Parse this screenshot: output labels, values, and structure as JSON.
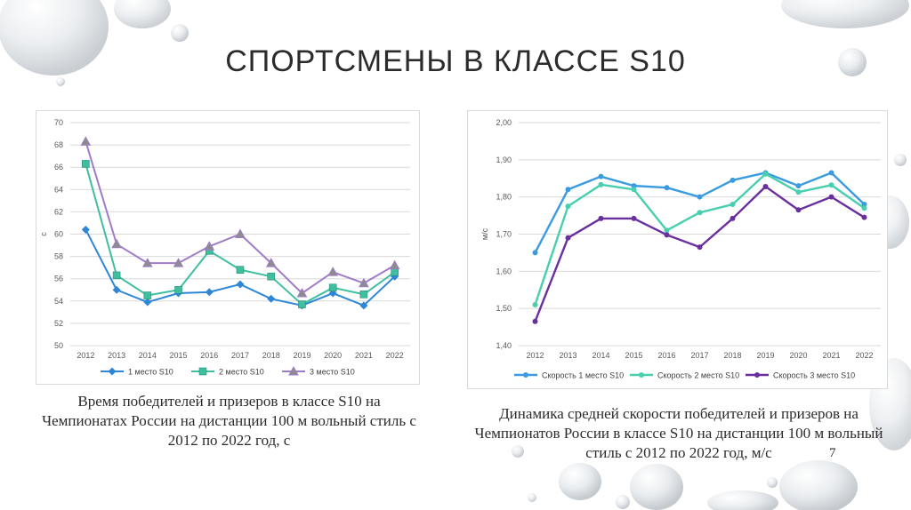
{
  "slide": {
    "title": "СПОРТСМЕНЫ В КЛАССЕ S10",
    "caption_left": "Время победителей и призеров в классе S10 на Чемпионатах России на дистанции 100 м вольный стиль с 2012 по 2022 год, с",
    "caption_right": "Динамика средней скорости победителей и призеров на Чемпионатов России в классе S10 на дистанции 100 м вольный стиль с 2012 по 2022 год, м/с",
    "page_number": "7"
  },
  "chart_data": [
    {
      "type": "line",
      "categories": [
        "2012",
        "2013",
        "2014",
        "2015",
        "2016",
        "2017",
        "2018",
        "2019",
        "2020",
        "2021",
        "2022"
      ],
      "ylabel": "с",
      "ylim": [
        50,
        70
      ],
      "yticks": [
        "50",
        "52",
        "54",
        "56",
        "58",
        "60",
        "62",
        "64",
        "66",
        "68",
        "70"
      ],
      "grid": true,
      "legend": "bottom",
      "series": [
        {
          "name": "1 место S10",
          "color": "#2e86d6",
          "marker": "diamond",
          "values": [
            60.4,
            55.0,
            53.9,
            54.7,
            54.8,
            55.5,
            54.2,
            53.6,
            54.7,
            53.6,
            56.2
          ]
        },
        {
          "name": "2 место S10",
          "color": "#3fbf9f",
          "marker": "square",
          "values": [
            66.3,
            56.3,
            54.5,
            55.0,
            58.5,
            56.8,
            56.2,
            53.7,
            55.2,
            54.6,
            56.6
          ]
        },
        {
          "name": "3 место S10",
          "color": "#a07cc8",
          "marker": "triangle",
          "values": [
            68.3,
            59.1,
            57.4,
            57.4,
            58.9,
            60.0,
            57.4,
            54.7,
            56.6,
            55.6,
            57.2
          ]
        }
      ]
    },
    {
      "type": "line",
      "categories": [
        "2012",
        "2013",
        "2014",
        "2015",
        "2016",
        "2017",
        "2018",
        "2019",
        "2020",
        "2021",
        "2022"
      ],
      "ylabel": "м/с",
      "ylim": [
        1.4,
        2.0
      ],
      "yticks": [
        "1,40",
        "1,50",
        "1,60",
        "1,70",
        "1,80",
        "1,90",
        "2,00"
      ],
      "grid": true,
      "legend": "bottom",
      "series": [
        {
          "name": "Скорость 1 место S10",
          "color": "#3a9be0",
          "marker": "circle",
          "values": [
            1.65,
            1.82,
            1.855,
            1.83,
            1.825,
            1.8,
            1.845,
            1.865,
            1.83,
            1.865,
            1.78
          ]
        },
        {
          "name": "Скорость 2 место S10",
          "color": "#47cfae",
          "marker": "circle",
          "values": [
            1.51,
            1.775,
            1.833,
            1.82,
            1.71,
            1.758,
            1.78,
            1.862,
            1.813,
            1.832,
            1.77
          ]
        },
        {
          "name": "Скорость 3 место S10",
          "color": "#6a2f9e",
          "marker": "circle",
          "values": [
            1.465,
            1.69,
            1.742,
            1.742,
            1.698,
            1.665,
            1.742,
            1.828,
            1.765,
            1.8,
            1.745
          ]
        }
      ]
    }
  ]
}
